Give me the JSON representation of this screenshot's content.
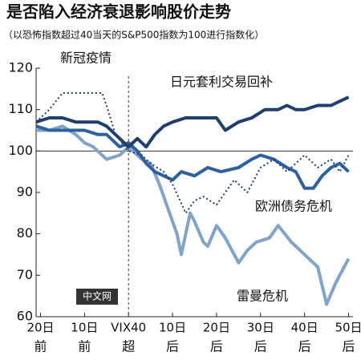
{
  "chart_data": {
    "type": "line",
    "title": "是否陷入经济衰退影响股价走势",
    "subtitle": "（以恐怖指数超过40当天的S&P500指数为100进行指数化）",
    "logo": "中文网",
    "ylim": [
      60,
      120
    ],
    "yticks": [
      60,
      70,
      80,
      90,
      100,
      110,
      120
    ],
    "xlim": [
      -21,
      51
    ],
    "xticks": [
      {
        "value": -20,
        "label": "20日"
      },
      {
        "value": -10,
        "label": "10日"
      },
      {
        "value": 0,
        "label": "VIX40"
      },
      {
        "value": 10,
        "label": "10日"
      },
      {
        "value": 20,
        "label": "20日"
      },
      {
        "value": 30,
        "label": "30日"
      },
      {
        "value": 40,
        "label": "40日"
      },
      {
        "value": 50,
        "label": "50日"
      }
    ],
    "xtick_sublabels": [
      "前",
      "前",
      "超",
      "后",
      "后",
      "后",
      "后",
      "后"
    ],
    "reference_y": 100,
    "reference_x": 0,
    "series": [
      {
        "name": "新冠疫情",
        "color": "#1f3f6e",
        "dash": true,
        "x": [
          -21,
          -18,
          -15,
          -12,
          -9,
          -6,
          -5,
          -3,
          0,
          3,
          5,
          8,
          10,
          13,
          15,
          17,
          20,
          22,
          24,
          27,
          30,
          33,
          36,
          38,
          40,
          43,
          46,
          48,
          50
        ],
        "values": [
          107,
          110,
          114,
          114,
          114,
          114,
          111,
          104,
          100,
          99,
          97,
          95,
          92,
          85,
          88,
          89,
          87,
          90,
          93,
          90,
          96,
          98,
          95,
          97,
          99,
          96,
          98,
          95,
          99
        ]
      },
      {
        "name": "日元套利交易回补",
        "color": "#1f3f6e",
        "dash": false,
        "x": [
          -21,
          -18,
          -15,
          -12,
          -10,
          -7,
          -5,
          -2,
          0,
          2,
          4,
          6,
          8,
          10,
          13,
          15,
          18,
          20,
          22,
          25,
          28,
          31,
          34,
          36,
          38,
          40,
          43,
          46,
          48,
          50
        ],
        "values": [
          107,
          108,
          108,
          107,
          107,
          107,
          106,
          103,
          101,
          103,
          101,
          104,
          106,
          107,
          108,
          108,
          108,
          108,
          105,
          107,
          108,
          110,
          110,
          111,
          110,
          110,
          111,
          111,
          112,
          113
        ]
      },
      {
        "name": "欧洲债务危机",
        "color": "#2e5f9e",
        "dash": false,
        "x": [
          -21,
          -18,
          -15,
          -12,
          -10,
          -7,
          -5,
          -2,
          0,
          2,
          4,
          6,
          8,
          10,
          12,
          15,
          18,
          21,
          25,
          28,
          30,
          33,
          36,
          38,
          40,
          42,
          44,
          46,
          48,
          50
        ],
        "values": [
          106,
          105,
          105,
          105,
          105,
          104,
          104,
          101,
          102,
          100,
          97,
          95,
          94,
          93,
          95,
          94,
          96,
          95,
          96,
          98,
          99,
          98,
          96,
          95,
          91,
          91,
          94,
          96,
          97,
          95
        ]
      },
      {
        "name": "雷曼危机",
        "color": "#7fa4c8",
        "dash": false,
        "x": [
          -21,
          -18,
          -15,
          -12,
          -10,
          -8,
          -5,
          -2,
          0,
          3,
          5,
          7,
          9,
          11,
          12,
          14,
          15,
          17,
          18,
          20,
          22,
          25,
          27,
          29,
          32,
          34,
          37,
          39,
          41,
          43,
          45,
          47,
          48,
          50
        ],
        "values": [
          105,
          105,
          106,
          104,
          102,
          101,
          98,
          99,
          101,
          98,
          97,
          92,
          86,
          80,
          75,
          85,
          83,
          78,
          77,
          82,
          79,
          73,
          76,
          78,
          79,
          82,
          78,
          76,
          74,
          72,
          63,
          68,
          70,
          74
        ]
      }
    ]
  }
}
